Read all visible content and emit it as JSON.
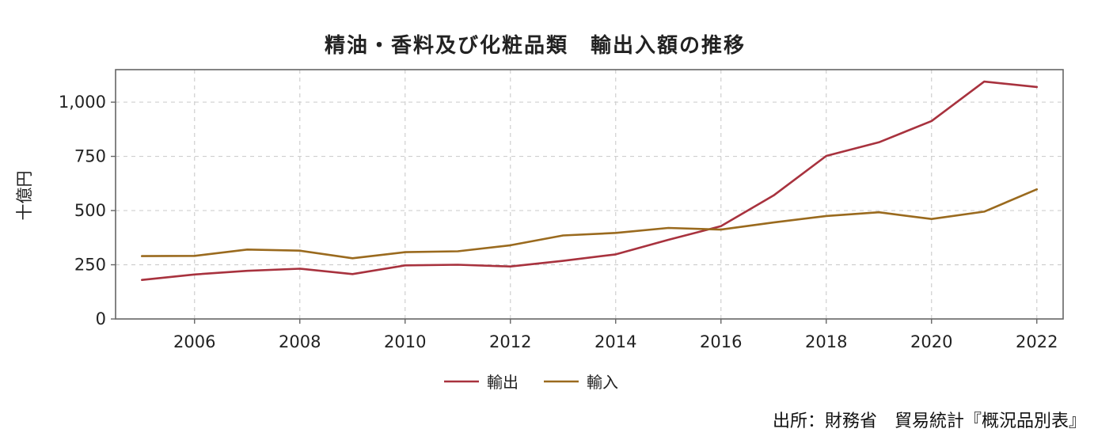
{
  "source": "出所：財務省　貿易統計『概況品別表』",
  "chart_data": {
    "type": "line",
    "title": "精油・香料及び化粧品類　輸出入額の推移",
    "xlabel": "",
    "ylabel": "十億円",
    "xlim": [
      2004.5,
      2022.5
    ],
    "ylim": [
      0,
      1150
    ],
    "x_ticks": [
      2006,
      2008,
      2010,
      2012,
      2014,
      2016,
      2018,
      2020,
      2022
    ],
    "y_ticks": [
      0,
      250,
      500,
      750,
      1000
    ],
    "y_tick_labels": [
      "0",
      "250",
      "500",
      "750",
      "1,000"
    ],
    "grid": true,
    "legend_position": "bottom",
    "x": [
      2005,
      2006,
      2007,
      2008,
      2009,
      2010,
      2011,
      2012,
      2013,
      2014,
      2015,
      2016,
      2017,
      2018,
      2019,
      2020,
      2021,
      2022
    ],
    "series": [
      {
        "name": "輸出",
        "color": "#a8323e",
        "values": [
          180,
          205,
          222,
          232,
          207,
          247,
          250,
          242,
          268,
          298,
          365,
          428,
          570,
          752,
          815,
          913,
          1095,
          1070
        ]
      },
      {
        "name": "輸入",
        "color": "#9a6a1e",
        "values": [
          290,
          291,
          320,
          315,
          280,
          308,
          312,
          340,
          385,
          397,
          420,
          412,
          445,
          475,
          492,
          461,
          495,
          598
        ]
      }
    ]
  }
}
